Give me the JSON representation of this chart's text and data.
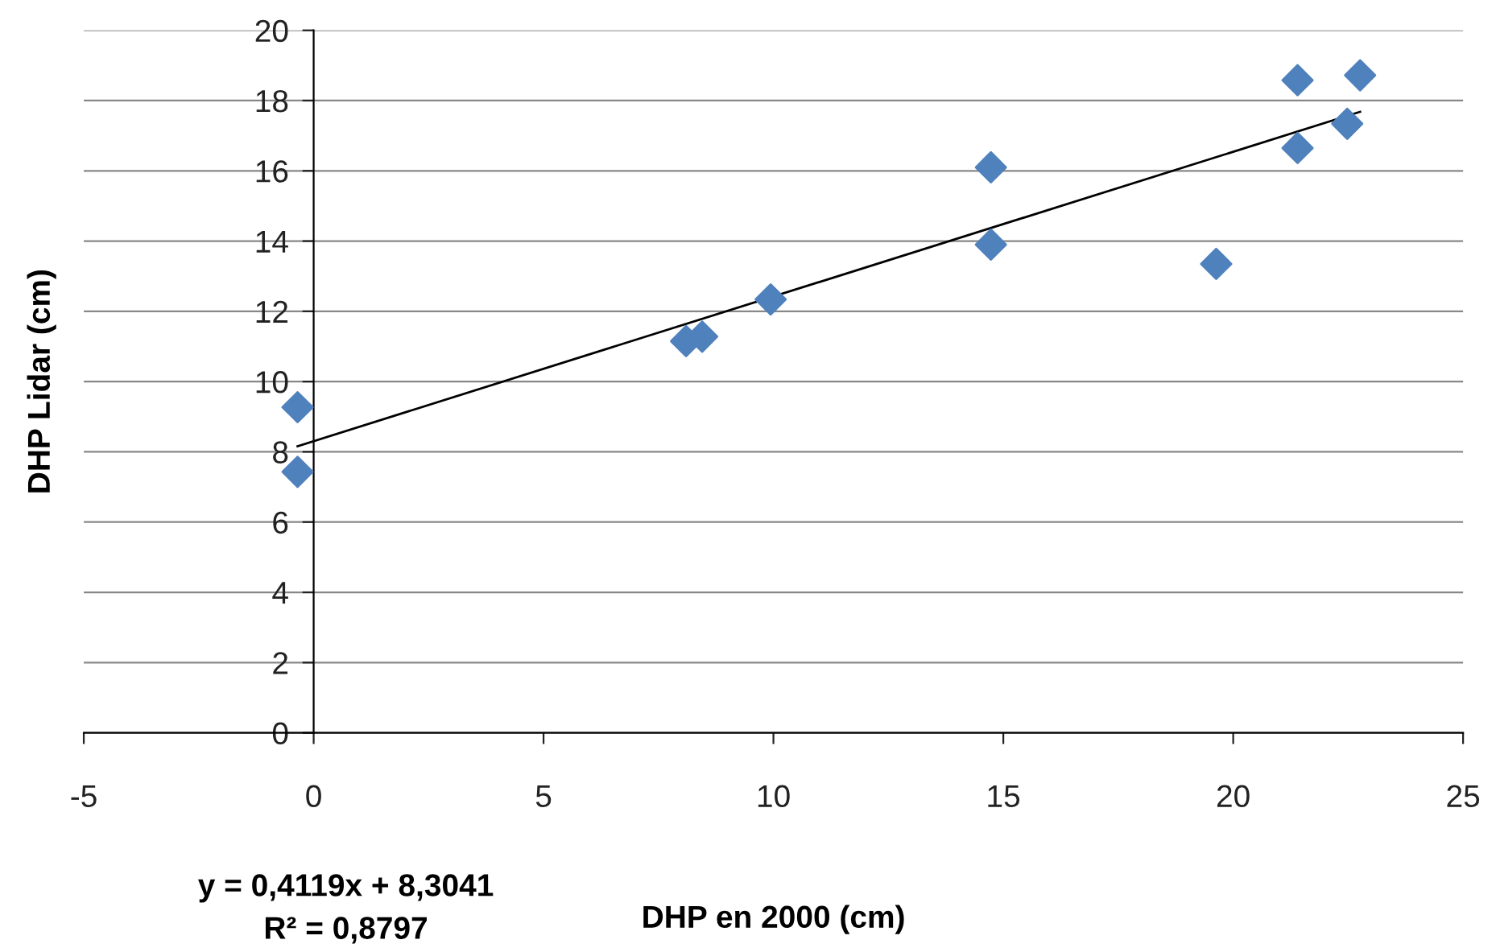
{
  "chart_data": {
    "type": "scatter",
    "xlabel": "DHP en 2000 (cm)",
    "ylabel": "DHP Lidar (cm)",
    "xlim": [
      -5,
      25
    ],
    "xticks": [
      -5,
      0,
      5,
      10,
      15,
      20,
      25
    ],
    "ylim": [
      0,
      20
    ],
    "yticks": [
      0,
      2,
      4,
      6,
      8,
      10,
      12,
      14,
      16,
      18,
      20
    ],
    "grid": "y",
    "marker": "diamond",
    "legend": false,
    "series": [
      {
        "color": "#4f81bd",
        "x": [
          -0.35,
          -0.35,
          8.1,
          8.45,
          9.94,
          14.73,
          14.73,
          19.63,
          21.4,
          21.4,
          22.48,
          22.76
        ],
        "values": [
          9.27,
          7.43,
          11.15,
          11.28,
          12.34,
          16.1,
          13.9,
          13.35,
          18.58,
          16.65,
          17.34,
          18.72
        ]
      },
      {
        "type": "line",
        "color": "#000000",
        "marker": "none",
        "line_style": "solid",
        "x": [
          -0.35,
          22.76
        ],
        "values": [
          8.16,
          17.68
        ]
      }
    ],
    "annotations": [
      "y = 0,4119x + 8,3041\nR² = 0,8797"
    ]
  }
}
